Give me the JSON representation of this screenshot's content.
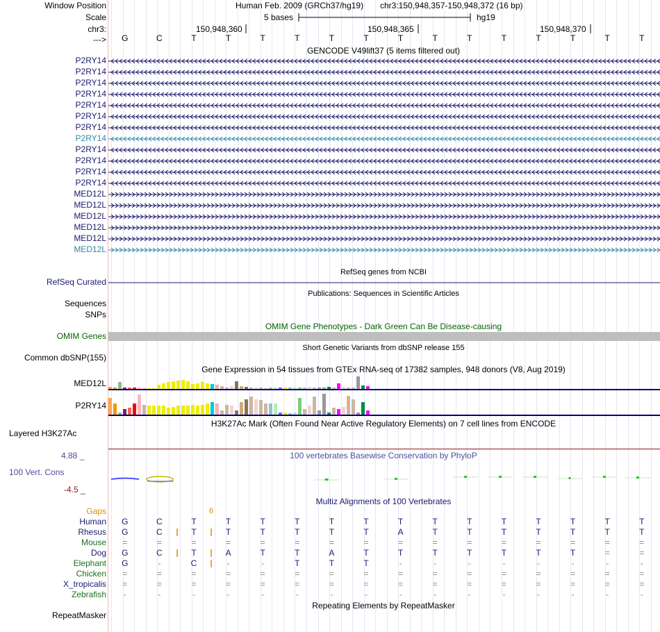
{
  "header": {
    "window_position_label": "Window Position",
    "assembly": "Human Feb. 2009 (GRCh37/hg19)",
    "position": "chr3:150,948,357-150,948,372 (16 bp)",
    "scale_label": "Scale",
    "scale_text": "5 bases",
    "scale_db": "hg19",
    "chrom_label": "chr3:",
    "strand_label": "--->",
    "coord_ticks": [
      "150,948,360",
      "150,948,365",
      "150,948,370"
    ],
    "bases": [
      "G",
      "C",
      "T",
      "T",
      "T",
      "T",
      "T",
      "T",
      "T",
      "T",
      "T",
      "T",
      "T",
      "T",
      "T",
      "T"
    ]
  },
  "gencode": {
    "title": "GENCODE V49lift37 (5 items filtered out)",
    "rows": [
      {
        "name": "P2RY14",
        "dir": "minus",
        "color": "#1a1a6e"
      },
      {
        "name": "P2RY14",
        "dir": "minus",
        "color": "#1a1a6e"
      },
      {
        "name": "P2RY14",
        "dir": "minus",
        "color": "#1a1a6e"
      },
      {
        "name": "P2RY14",
        "dir": "minus",
        "color": "#1a1a6e"
      },
      {
        "name": "P2RY14",
        "dir": "minus",
        "color": "#1a1a6e"
      },
      {
        "name": "P2RY14",
        "dir": "minus",
        "color": "#1a1a6e"
      },
      {
        "name": "P2RY14",
        "dir": "minus",
        "color": "#1a1a6e"
      },
      {
        "name": "P2RY14",
        "dir": "minus",
        "color": "#2a8aa8"
      },
      {
        "name": "P2RY14",
        "dir": "minus",
        "color": "#1a1a6e"
      },
      {
        "name": "P2RY14",
        "dir": "minus",
        "color": "#1a1a6e"
      },
      {
        "name": "P2RY14",
        "dir": "minus",
        "color": "#1a1a6e"
      },
      {
        "name": "P2RY14",
        "dir": "minus",
        "color": "#1a1a6e"
      },
      {
        "name": "MED12L",
        "dir": "plus",
        "color": "#1a1a6e"
      },
      {
        "name": "MED12L",
        "dir": "plus",
        "color": "#1a1a6e"
      },
      {
        "name": "MED12L",
        "dir": "plus",
        "color": "#1a1a6e"
      },
      {
        "name": "MED12L",
        "dir": "plus",
        "color": "#1a1a6e"
      },
      {
        "name": "MED12L",
        "dir": "plus",
        "color": "#1a1a6e"
      },
      {
        "name": "MED12L",
        "dir": "plus",
        "color": "#2a8aa8"
      }
    ]
  },
  "refseq": {
    "title": "RefSeq genes from NCBI",
    "label": "RefSeq Curated"
  },
  "publications": {
    "title": "Publications: Sequences in Scientific Articles",
    "labels": [
      "Sequences",
      "SNPs"
    ]
  },
  "omim": {
    "title": "OMIM Gene Phenotypes - Dark Green Can Be Disease-causing",
    "label": "OMIM Genes"
  },
  "dbsnp": {
    "title": "Short Genetic Variants from dbSNP release 155",
    "label": "Common dbSNP(155)"
  },
  "gtex": {
    "title": "Gene Expression in 54 tissues from GTEx RNA-seq of 17382 samples, 948 donors (V8, Aug 2019)",
    "genes": [
      {
        "name": "MED12L",
        "values": [
          0.15,
          0.1,
          0.55,
          0.1,
          0.1,
          0.1,
          0.1,
          0.05,
          0.05,
          0.05,
          0.35,
          0.45,
          0.55,
          0.6,
          0.65,
          0.7,
          0.6,
          0.4,
          0.45,
          0.55,
          0.45,
          0.4,
          0.35,
          0.2,
          0.1,
          0.2,
          0.6,
          0.2,
          0.15,
          0.1,
          0.1,
          0.1,
          0.05,
          0.1,
          0.1,
          0.1,
          0.1,
          0.1,
          0.1,
          0.1,
          0.1,
          0.15,
          0.1,
          0.1,
          0.1,
          0.15,
          0.1,
          0.45,
          0.15,
          0.1,
          0.1,
          1.0,
          0.3,
          0.2
        ]
      },
      {
        "name": "P2RY14",
        "values": [
          0.75,
          0.5,
          0.1,
          0.25,
          0.3,
          0.5,
          0.9,
          0.45,
          0.4,
          0.4,
          0.4,
          0.4,
          0.3,
          0.35,
          0.4,
          0.4,
          0.4,
          0.45,
          0.4,
          0.45,
          0.5,
          0.55,
          0.5,
          0.2,
          0.45,
          0.4,
          0.2,
          0.55,
          0.7,
          0.8,
          0.7,
          0.65,
          0.5,
          0.5,
          0.5,
          0.1,
          0.1,
          0.05,
          0.1,
          0.75,
          0.25,
          0.4,
          0.8,
          0.2,
          0.95,
          0.1,
          0.3,
          0.25,
          0.35,
          0.85,
          0.7,
          0.1,
          0.55,
          0.2
        ]
      }
    ],
    "colors": [
      "#ffa54f",
      "#ee9a00",
      "#8fbc8f",
      "#8b1c62",
      "#ee6a50",
      "#ff0000",
      "#ffb6c1",
      "#cdb79e",
      "#eeee00",
      "#eeee00",
      "#eeee00",
      "#eeee00",
      "#eeee00",
      "#eeee00",
      "#eeee00",
      "#eeee00",
      "#eeee00",
      "#eeee00",
      "#eeee00",
      "#eeee00",
      "#eeee00",
      "#00cdcd",
      "#eeb4b4",
      "#cdb79e",
      "#cdb79e",
      "#eed5d2",
      "#8b7355",
      "#cdaa7d",
      "#8b7355",
      "#cdb79e",
      "#eed5d2",
      "#cdb79e",
      "#cdb79e",
      "#9ac0cd",
      "#b4eeb4",
      "#7a67ee",
      "#eeee00",
      "#9ac0cd",
      "#b4eeb4",
      "#7ccd7c",
      "#cdb79e",
      "#eed5d2",
      "#cdb79e",
      "#999999",
      "#999999",
      "#008b45",
      "#cdb79e",
      "#ff00ff",
      "#eed5d2",
      "#cdb79e",
      "#cdb79e",
      "#999999",
      "#008b45",
      "#ff00ff"
    ]
  },
  "h3k27ac": {
    "title": "H3K27Ac Mark (Often Found Near Active Regulatory Elements) on 7 cell lines from ENCODE",
    "label": "Layered H3K27Ac"
  },
  "phylop": {
    "title": "100 vertebrates Basewise Conservation by PhyloP",
    "label": "100 Vert. Cons",
    "max_label": "4.88 _",
    "min_label": "-4.5 _"
  },
  "multiz": {
    "title": "Multiz Alignments of 100 Vertebrates",
    "gaps_label": "Gaps",
    "gap_count": "6",
    "species": [
      {
        "name": "Human",
        "bases": [
          "G",
          "C",
          "T",
          "T",
          "T",
          "T",
          "T",
          "T",
          "T",
          "T",
          "T",
          "T",
          "T",
          "T",
          "T",
          "T"
        ]
      },
      {
        "name": "Rhesus",
        "bases": [
          "G",
          "C",
          "T",
          "T",
          "T",
          "T",
          "T",
          "T",
          "A",
          "T",
          "T",
          "T",
          "T",
          "T",
          "T",
          "T"
        ]
      },
      {
        "name": "Mouse",
        "bases": [
          "=",
          "=",
          "=",
          "=",
          "=",
          "=",
          "=",
          "=",
          "=",
          "=",
          "=",
          "=",
          "=",
          "=",
          "=",
          "="
        ]
      },
      {
        "name": "Dog",
        "bases": [
          "G",
          "C",
          "T",
          "A",
          "T",
          "T",
          "A",
          "T",
          "T",
          "T",
          "T",
          "T",
          "T",
          "T",
          "=",
          "="
        ]
      },
      {
        "name": "Elephant",
        "bases": [
          "G",
          "-",
          "C",
          "-",
          "-",
          "T",
          "T",
          "T",
          "-",
          "-",
          "-",
          "-",
          "-",
          "-",
          "-",
          "-"
        ]
      },
      {
        "name": "Chicken",
        "bases": [
          "=",
          "=",
          "=",
          "=",
          "=",
          "=",
          "=",
          "=",
          "=",
          "=",
          "=",
          "=",
          "=",
          "=",
          "=",
          "="
        ]
      },
      {
        "name": "X_tropicalis",
        "bases": [
          "=",
          "=",
          "=",
          "=",
          "=",
          "=",
          "=",
          "=",
          "=",
          "=",
          "=",
          "=",
          "=",
          "=",
          "=",
          "="
        ]
      },
      {
        "name": "Zebrafish",
        "bases": [
          "-",
          "-",
          "-",
          "-",
          "-",
          "-",
          "-",
          "-",
          "-",
          "-",
          "-",
          "-",
          "-",
          "-",
          "-",
          "-"
        ]
      }
    ]
  },
  "repeatmasker": {
    "title": "Repeating Elements by RepeatMasker",
    "label": "RepeatMasker"
  },
  "colors": {
    "navy": "#000080",
    "omim_green": "#006400",
    "teal": "#2a8aa8",
    "phylop_blue": "#4d4d9e",
    "gaps_orange": "#d2900a",
    "refseq_blue": "#1a1a6e"
  }
}
